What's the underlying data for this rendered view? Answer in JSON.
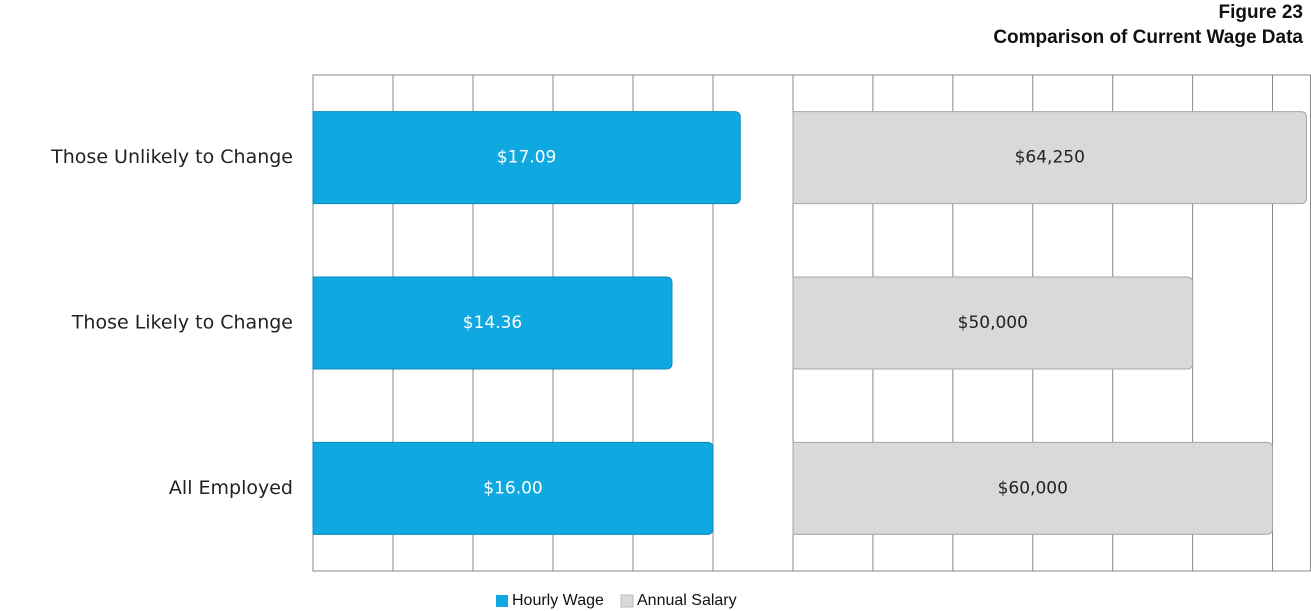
{
  "chart_data": {
    "type": "bar",
    "orientation": "horizontal",
    "title": "Figure 23",
    "subtitle": "Comparison of Current Wage Data",
    "categories": [
      "Those Unlikely to Change",
      "Those Likely to Change",
      "All Employed"
    ],
    "series": [
      {
        "name": "Hourly Wage",
        "color": "#0fa8e0",
        "values": [
          17.09,
          14.36,
          16.0
        ],
        "value_labels": [
          "$17.09",
          "$14.36",
          "$16.00"
        ],
        "xlim": [
          0,
          19.2
        ],
        "xticks": [
          0,
          3.2,
          6.4,
          9.6,
          12.8,
          16,
          19.2
        ]
      },
      {
        "name": "Annual Salary",
        "color": "#d9d9d9",
        "values": [
          64250,
          50000,
          60000
        ],
        "value_labels": [
          "$64,250",
          "$50,000",
          "$60,000"
        ],
        "xlim": [
          0,
          64750
        ],
        "xticks": [
          0,
          10000,
          20000,
          30000,
          40000,
          50000,
          60000
        ]
      }
    ],
    "grid": true,
    "legend": "bottom"
  }
}
